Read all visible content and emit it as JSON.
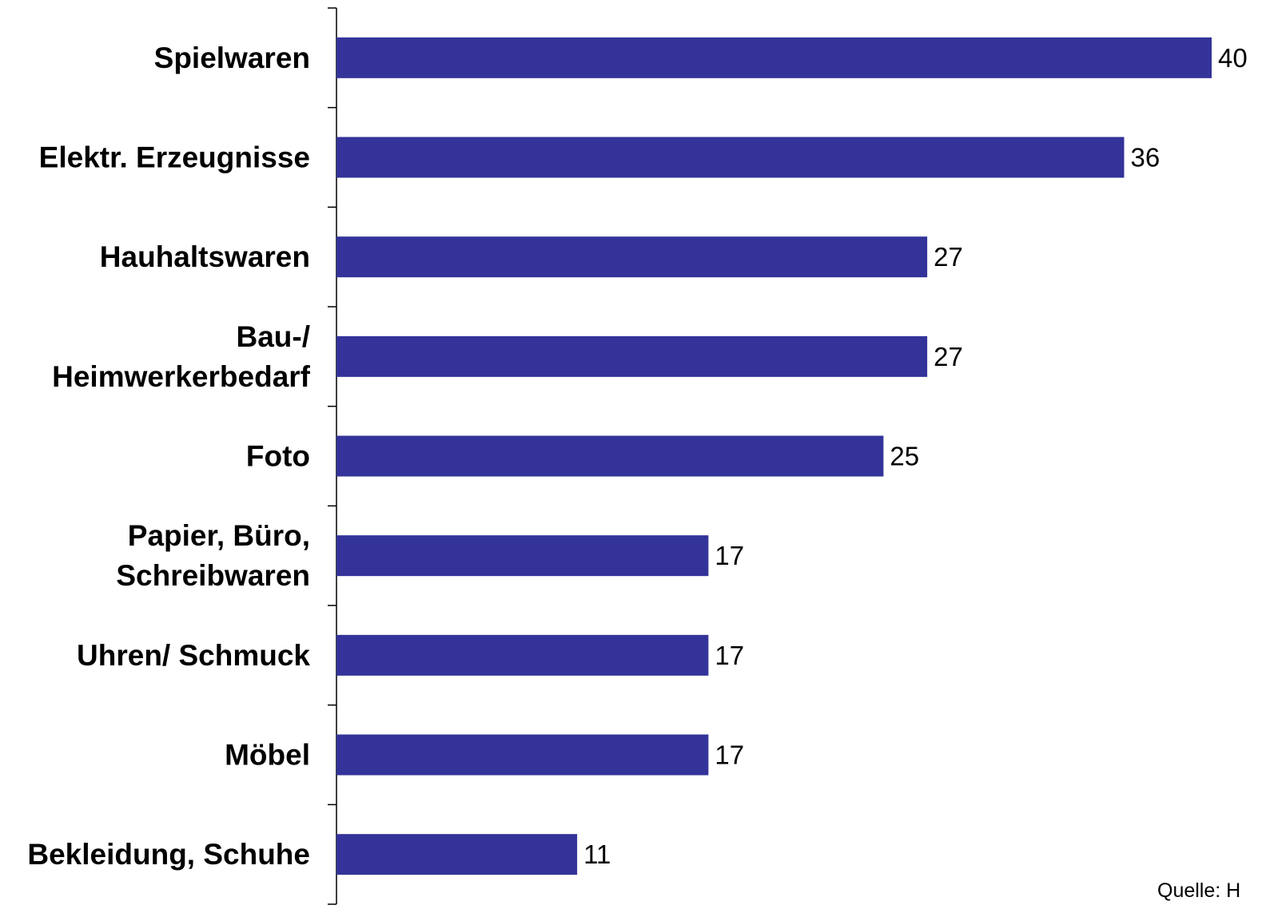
{
  "chart_data": {
    "type": "bar",
    "orientation": "horizontal",
    "categories": [
      [
        "Spielwaren"
      ],
      [
        "Elektr. Erzeugnisse"
      ],
      [
        "Hauhaltswaren"
      ],
      [
        "Bau-/",
        "Heimwerkerbedarf"
      ],
      [
        "Foto"
      ],
      [
        "Papier, Büro,",
        "Schreibwaren"
      ],
      [
        "Uhren/ Schmuck"
      ],
      [
        "Möbel"
      ],
      [
        "Bekleidung, Schuhe"
      ]
    ],
    "values": [
      40,
      36,
      27,
      27,
      25,
      17,
      17,
      17,
      11
    ],
    "value_labels": [
      "40",
      "36",
      "27",
      "27",
      "25",
      "17",
      "17",
      "17",
      "11"
    ],
    "bar_color": "#333399",
    "xlim": [
      0,
      40
    ],
    "grid": false,
    "legend": "none",
    "source_note": "Quelle: H"
  }
}
